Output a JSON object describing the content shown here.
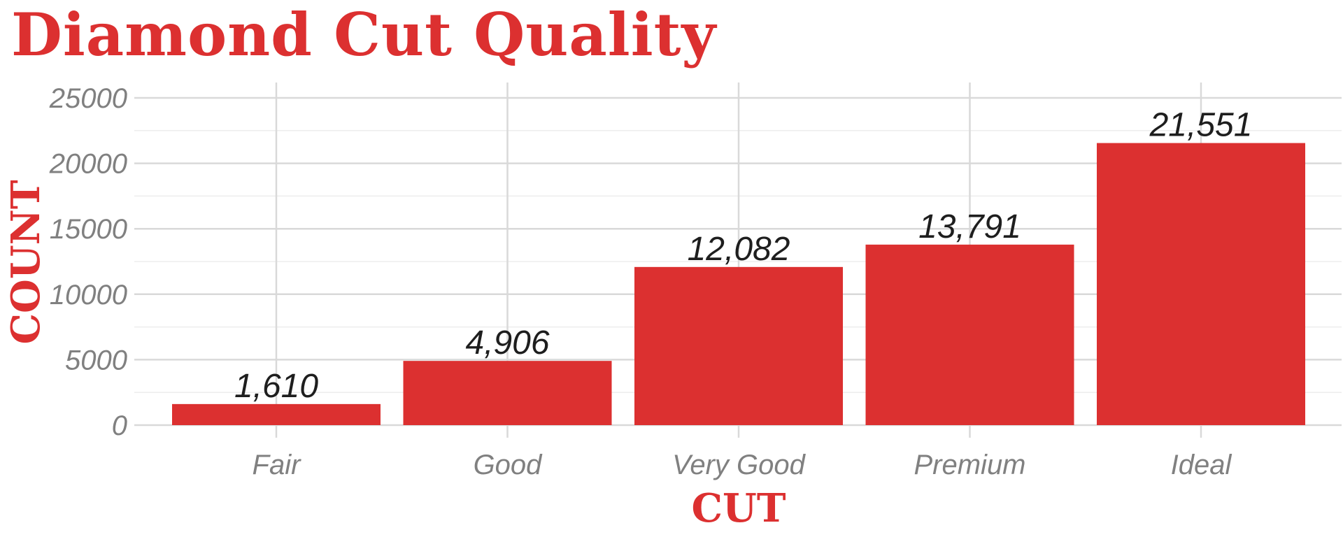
{
  "chart_data": {
    "type": "bar",
    "title": "Diamond Cut Quality",
    "xlabel": "CUT",
    "ylabel": "COUNT",
    "categories": [
      "Fair",
      "Good",
      "Very Good",
      "Premium",
      "Ideal"
    ],
    "values": [
      1610,
      4906,
      12082,
      13791,
      21551
    ],
    "data_labels": [
      "1,610",
      "4,906",
      "12,082",
      "13,791",
      "21,551"
    ],
    "yticks": [
      0,
      5000,
      10000,
      15000,
      20000,
      25000
    ],
    "ytick_labels": [
      "0",
      "5000",
      "10000",
      "15000",
      "20000",
      "25000"
    ],
    "ylim": [
      0,
      25000
    ],
    "grid": true,
    "legend": "none",
    "bar_color": "#dc3030",
    "grid_color": "#d9d9d9",
    "minor_grid_color": "#ededed"
  }
}
